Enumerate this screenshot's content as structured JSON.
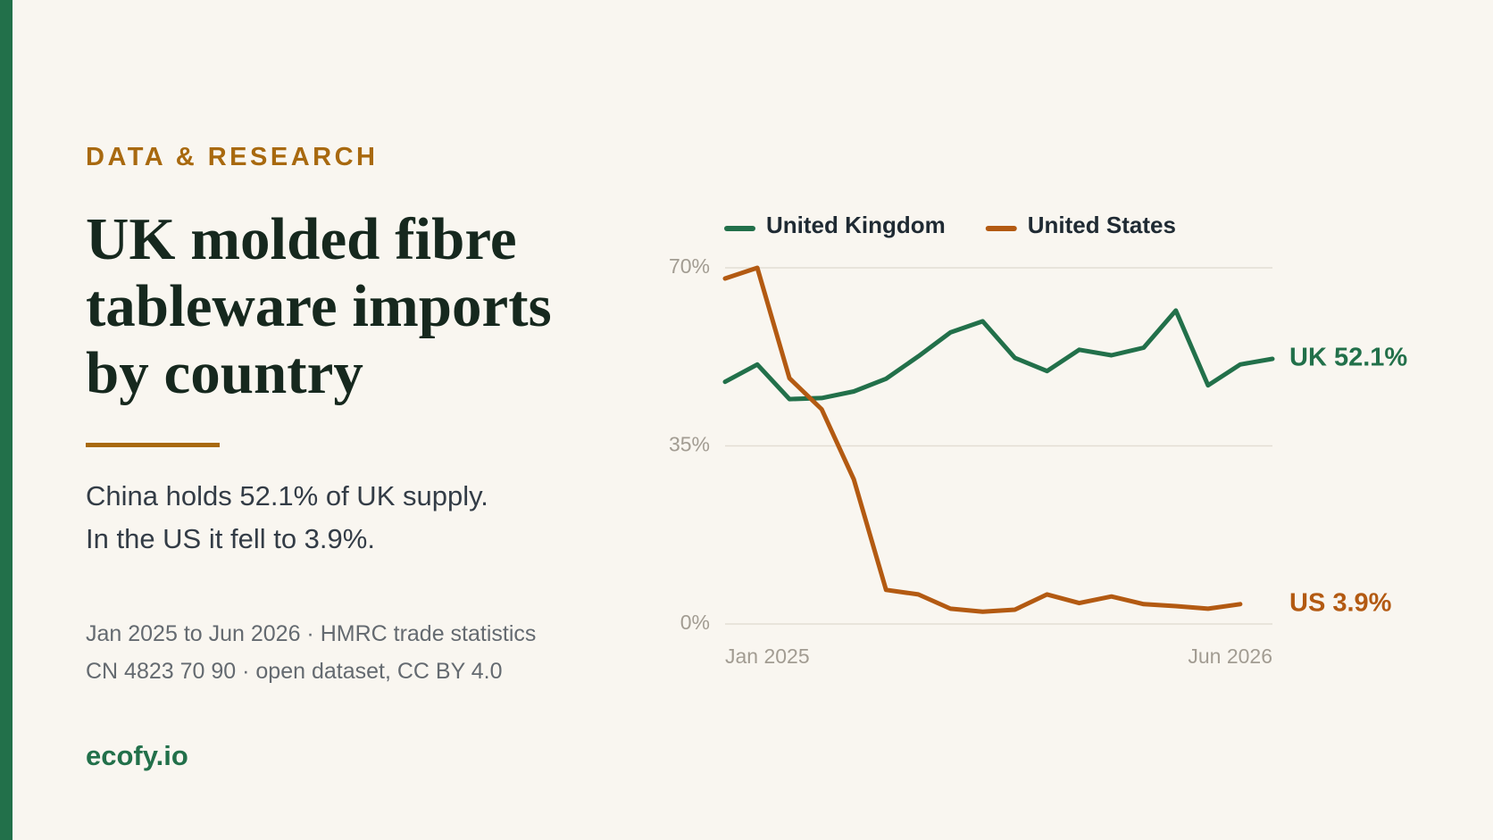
{
  "eyebrow": "DATA & RESEARCH",
  "title": [
    "UK molded fibre",
    "tableware imports",
    "by country"
  ],
  "subtitle": [
    "China holds 52.1% of UK supply.",
    "In the US it fell to 3.9%."
  ],
  "source": [
    "Jan 2025 to Jun 2026 · HMRC trade statistics",
    "CN 4823 70 90 · open dataset, CC BY 4.0"
  ],
  "brand": "ecofy.io",
  "chart_data": {
    "type": "line",
    "categories": [
      "Jan 2025",
      null,
      null,
      null,
      null,
      null,
      null,
      null,
      null,
      null,
      null,
      null,
      null,
      null,
      null,
      null,
      null,
      "Jun 2026"
    ],
    "series": [
      {
        "name": "United Kingdom",
        "color": "#22704a",
        "end_label": "UK 52.1%",
        "values": [
          47.6,
          51.0,
          44.2,
          44.4,
          45.7,
          48.2,
          52.6,
          57.3,
          59.5,
          52.3,
          49.7,
          53.9,
          52.8,
          54.3,
          61.6,
          46.9,
          51.0,
          52.1
        ]
      },
      {
        "name": "United States",
        "color": "#b35a12",
        "end_label": "US 3.9%",
        "values": [
          67.9,
          70.0,
          48.3,
          42.2,
          28.4,
          6.7,
          5.8,
          3.0,
          2.4,
          2.8,
          5.8,
          4.1,
          5.4,
          3.9,
          3.5,
          3.0,
          3.9,
          null
        ]
      }
    ],
    "ylim": [
      0,
      70
    ],
    "yticks": [
      {
        "value": 0,
        "label": "0%"
      },
      {
        "value": 35,
        "label": "35%"
      },
      {
        "value": 70,
        "label": "70%"
      }
    ],
    "grid": true
  }
}
